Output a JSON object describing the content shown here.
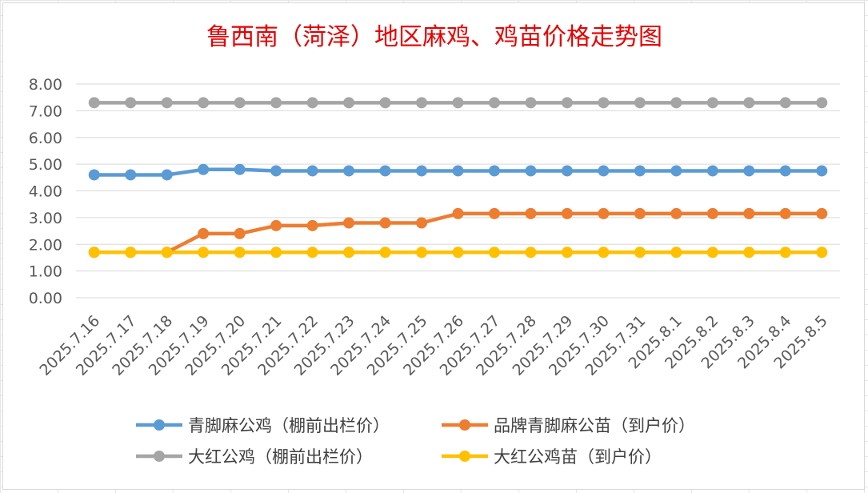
{
  "chart_data": {
    "type": "line",
    "title": "鲁西南（菏泽）地区麻鸡、鸡苗价格走势图",
    "xlabel": "",
    "ylabel": "",
    "ylim": [
      0,
      8
    ],
    "y_ticks": [
      "0.00",
      "1.00",
      "2.00",
      "3.00",
      "4.00",
      "5.00",
      "6.00",
      "7.00",
      "8.00"
    ],
    "grid": "horizontal",
    "legend_position": "bottom",
    "categories": [
      "2025.7.16",
      "2025.7.17",
      "2025.7.18",
      "2025.7.19",
      "2025.7.20",
      "2025.7.21",
      "2025.7.22",
      "2025.7.23",
      "2025.7.24",
      "2025.7.25",
      "2025.7.26",
      "2025.7.27",
      "2025.7.28",
      "2025.7.29",
      "2025.7.30",
      "2025.7.31",
      "2025.8.1",
      "2025.8.2",
      "2025.8.3",
      "2025.8.4",
      "2025.8.5"
    ],
    "series": [
      {
        "name": "青脚麻公鸡（棚前出栏价）",
        "color": "#5b9bd5",
        "values": [
          4.6,
          4.6,
          4.6,
          4.8,
          4.8,
          4.75,
          4.75,
          4.75,
          4.75,
          4.75,
          4.75,
          4.75,
          4.75,
          4.75,
          4.75,
          4.75,
          4.75,
          4.75,
          4.75,
          4.75,
          4.75
        ]
      },
      {
        "name": "品牌青脚麻公苗（到户价）",
        "color": "#ed7d31",
        "values": [
          1.7,
          1.7,
          1.7,
          2.4,
          2.4,
          2.7,
          2.7,
          2.8,
          2.8,
          2.8,
          3.15,
          3.15,
          3.15,
          3.15,
          3.15,
          3.15,
          3.15,
          3.15,
          3.15,
          3.15,
          3.15
        ]
      },
      {
        "name": "大红公鸡（棚前出栏价）",
        "color": "#a5a5a5",
        "values": [
          7.3,
          7.3,
          7.3,
          7.3,
          7.3,
          7.3,
          7.3,
          7.3,
          7.3,
          7.3,
          7.3,
          7.3,
          7.3,
          7.3,
          7.3,
          7.3,
          7.3,
          7.3,
          7.3,
          7.3,
          7.3
        ]
      },
      {
        "name": "大红公鸡苗（到户价）",
        "color": "#ffc000",
        "values": [
          1.7,
          1.7,
          1.7,
          1.7,
          1.7,
          1.7,
          1.7,
          1.7,
          1.7,
          1.7,
          1.7,
          1.7,
          1.7,
          1.7,
          1.7,
          1.7,
          1.7,
          1.7,
          1.7,
          1.7,
          1.7
        ]
      }
    ]
  }
}
